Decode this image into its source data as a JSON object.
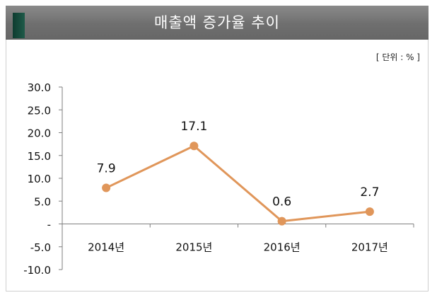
{
  "chart_data": {
    "type": "line",
    "title": "매출액 증가율 추이",
    "unit_label": "[ 단위 : % ]",
    "categories": [
      "2014년",
      "2015년",
      "2016년",
      "2017년"
    ],
    "series": [
      {
        "name": "매출액 증가율",
        "values": [
          7.9,
          17.1,
          0.6,
          2.7
        ],
        "labels": [
          "7.9",
          "17.1",
          "0.6",
          "2.7"
        ]
      }
    ],
    "y_ticks": [
      30,
      25,
      20,
      15,
      10,
      5,
      0,
      -5,
      -10
    ],
    "y_tick_labels": [
      "30.0",
      "25.0",
      "20.0",
      "15.0",
      "10.0",
      "5.0",
      "-",
      "-5.0",
      "-10.0"
    ],
    "ylim": [
      -10,
      30
    ],
    "xlabel": "",
    "ylabel": "",
    "colors": {
      "line": "#e0965a",
      "marker": "#e0965a"
    }
  }
}
